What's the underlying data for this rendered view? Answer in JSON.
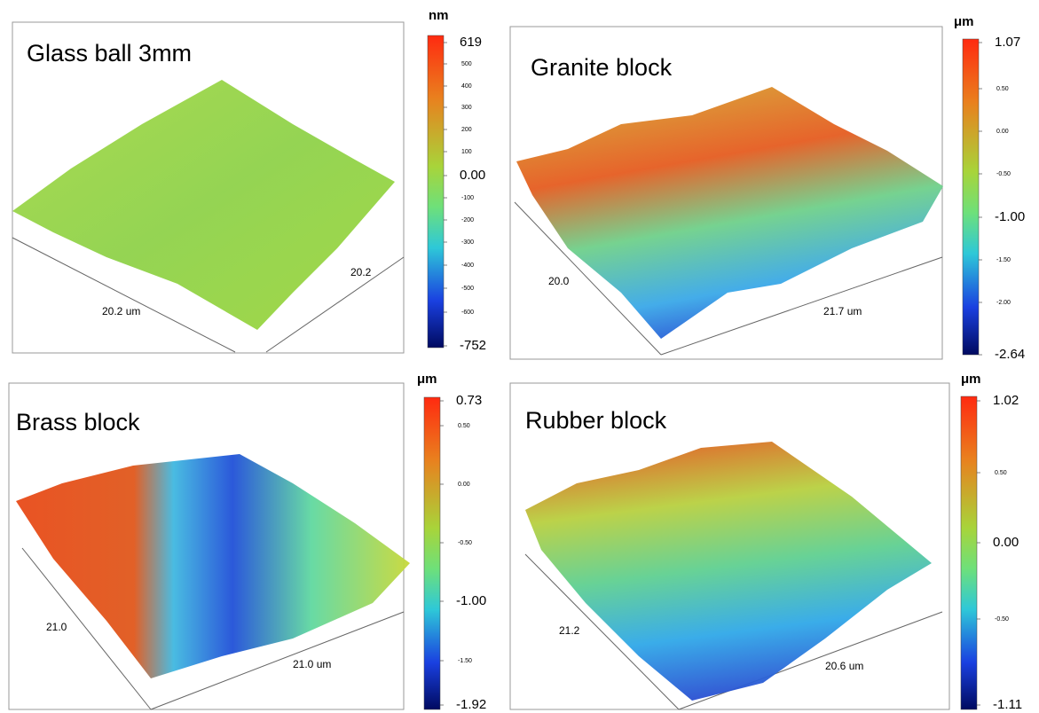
{
  "panels": [
    {
      "title": "Glass ball 3mm",
      "unit": "nm",
      "ticks": [
        "619",
        "500",
        "400",
        "300",
        "200",
        "100",
        "0.00",
        "-100",
        "-200",
        "-300",
        "-400",
        "-500",
        "-600",
        "-752"
      ],
      "axis_labels": [
        "20.2 um",
        "20.2"
      ]
    },
    {
      "title": "Granite block",
      "unit": "μm",
      "ticks": [
        "1.07",
        "0.50",
        "0.00",
        "-0.50",
        "-1.00",
        "-1.50",
        "-2.00",
        "-2.64"
      ],
      "axis_labels": [
        "20.0",
        "21.7 um"
      ]
    },
    {
      "title": "Brass block",
      "unit": "μm",
      "ticks": [
        "0.73",
        "0.50",
        "0.00",
        "-0.50",
        "-1.00",
        "-1.50",
        "-1.92"
      ],
      "axis_labels": [
        "21.0",
        "21.0 um"
      ]
    },
    {
      "title": "Rubber block",
      "unit": "μm",
      "ticks": [
        "1.02",
        "0.50",
        "0.00",
        "-0.50",
        "-1.11"
      ],
      "axis_labels": [
        "21.2",
        "20.6 um"
      ]
    }
  ]
}
